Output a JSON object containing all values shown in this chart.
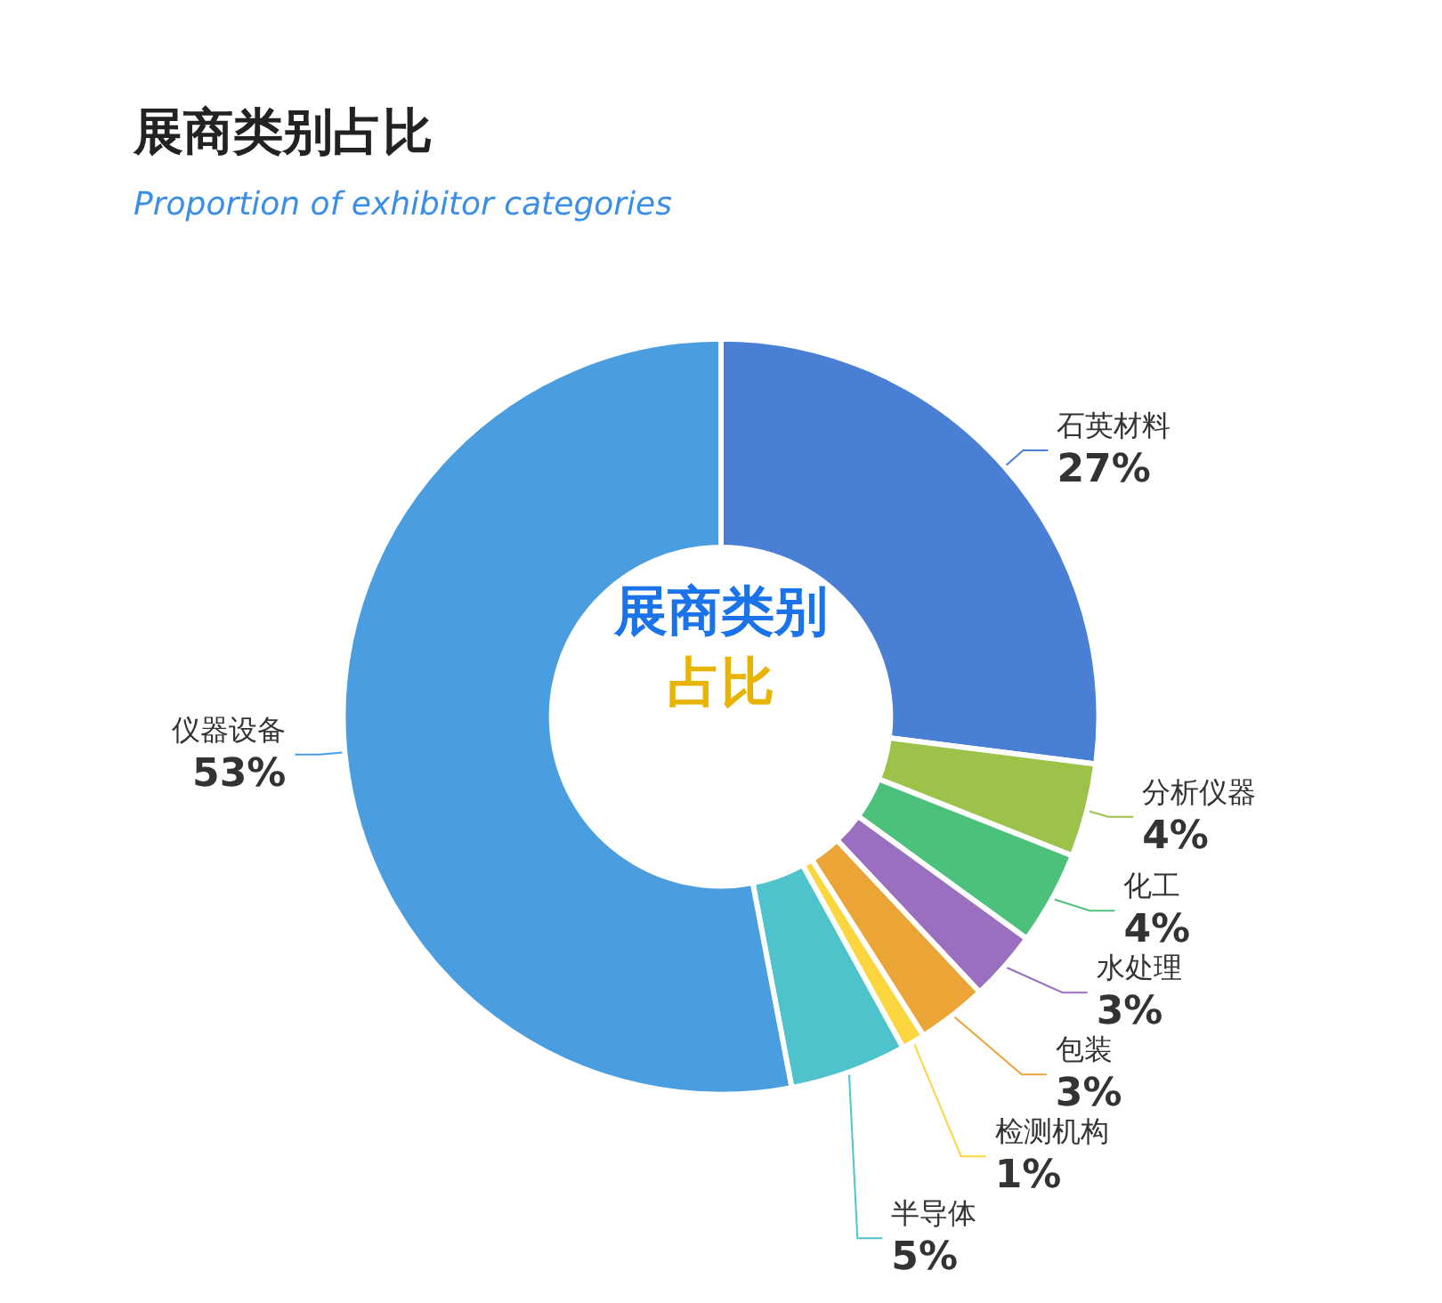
{
  "chart_data": {
    "type": "donut",
    "title": "展商类别占比",
    "subtitle": "Proportion of exhibitor categories",
    "categories": [
      "石英材料",
      "分析仪器",
      "化工",
      "水处理",
      "包装",
      "检测机构",
      "半导体",
      "仪器设备"
    ],
    "values": [
      27,
      4,
      4,
      3,
      3,
      1,
      5,
      53
    ],
    "value_labels": [
      "27%",
      "4%",
      "4%",
      "3%",
      "3%",
      "1%",
      "5%",
      "53%"
    ],
    "colors": [
      "#4a7fd6",
      "#9cc24a",
      "#4cc17c",
      "#9b6fc0",
      "#eba436",
      "#fbd63f",
      "#4fc3cc",
      "#4a9ee0"
    ],
    "annotations": [
      "展商类别",
      "占比"
    ],
    "legend": false
  }
}
